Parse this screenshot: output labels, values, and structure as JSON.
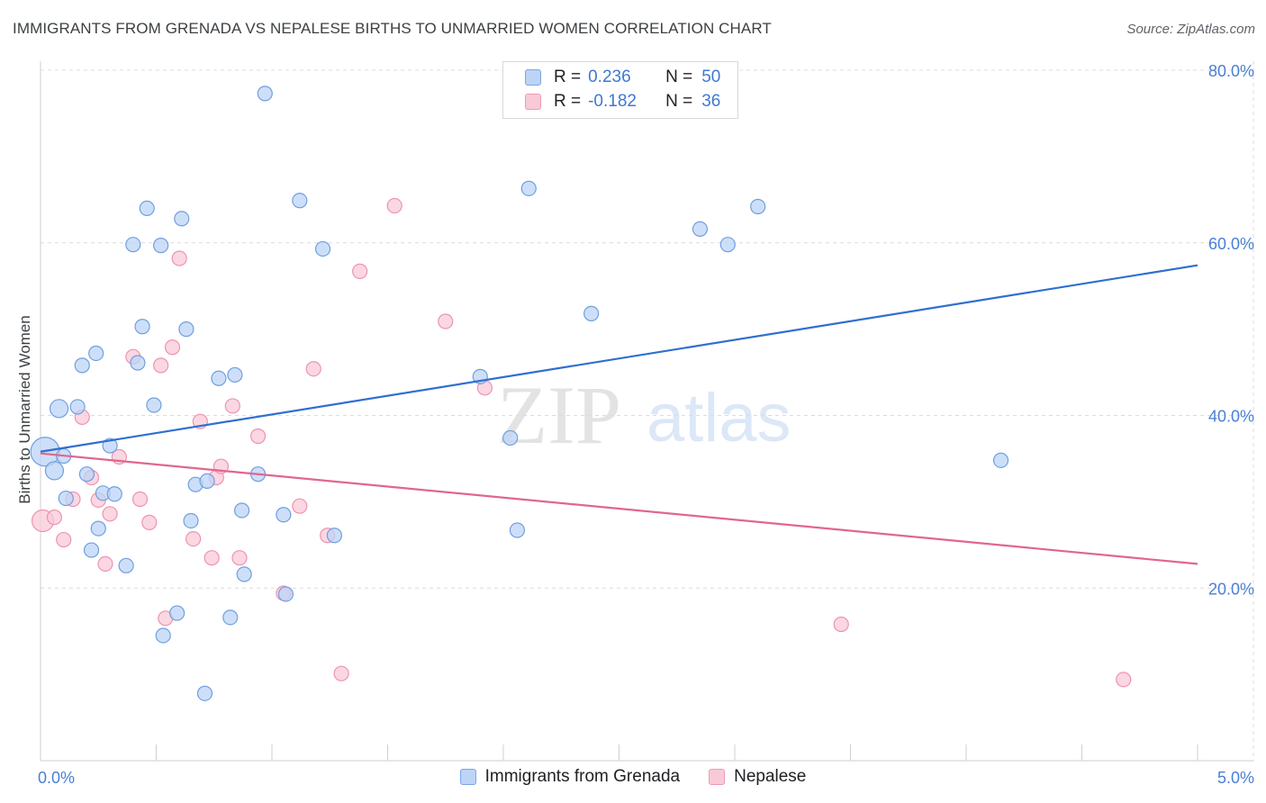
{
  "title": "IMMIGRANTS FROM GRENADA VS NEPALESE BIRTHS TO UNMARRIED WOMEN CORRELATION CHART",
  "source": "Source: ZipAtlas.com",
  "watermark": {
    "zip": "ZIP",
    "atlas": "atlas"
  },
  "legend": {
    "rows": [
      {
        "r_label": "R =",
        "r_value": "0.236",
        "n_label": "N =",
        "n_value": "50"
      },
      {
        "r_label": "R =",
        "r_value": "-0.182",
        "n_label": "N =",
        "n_value": "36"
      }
    ]
  },
  "colors": {
    "blue_fill": "#bcd4f6",
    "blue_stroke": "#6f9fe0",
    "blue_line": "#2f6fd0",
    "pink_fill": "#f9c9d8",
    "pink_stroke": "#ec94b2",
    "pink_line": "#e06690",
    "tick": "#4a7fd4",
    "grid": "#dcdcdc"
  },
  "chart_data": {
    "type": "scatter",
    "title": "IMMIGRANTS FROM GRENADA VS NEPALESE BIRTHS TO UNMARRIED WOMEN CORRELATION CHART",
    "xlabel": "",
    "ylabel": "Births to Unmarried Women",
    "xlim": [
      0,
      5
    ],
    "ylim": [
      0,
      80
    ],
    "x_ticks": [
      0,
      5
    ],
    "x_tick_labels": [
      "0.0%",
      "5.0%"
    ],
    "y_ticks": [
      20,
      40,
      60,
      80
    ],
    "y_tick_labels": [
      "20.0%",
      "40.0%",
      "60.0%",
      "80.0%"
    ],
    "grid": true,
    "legend_position": "bottom",
    "series": [
      {
        "name": "Immigrants from Grenada",
        "r": 0.236,
        "n": 50,
        "trend": [
          [
            0,
            35.8
          ],
          [
            5,
            57.4
          ]
        ],
        "points": [
          [
            0.02,
            35.8,
            16
          ],
          [
            0.06,
            33.6,
            10
          ],
          [
            0.08,
            40.8,
            10
          ],
          [
            0.1,
            35.3,
            8
          ],
          [
            0.11,
            30.4,
            8
          ],
          [
            0.16,
            41.0,
            8
          ],
          [
            0.18,
            45.8,
            8
          ],
          [
            0.2,
            33.2,
            8
          ],
          [
            0.22,
            24.4,
            8
          ],
          [
            0.24,
            47.2,
            8
          ],
          [
            0.25,
            26.9,
            8
          ],
          [
            0.27,
            31.0,
            8
          ],
          [
            0.3,
            36.5,
            8
          ],
          [
            0.32,
            30.9,
            8
          ],
          [
            0.37,
            22.6,
            8
          ],
          [
            0.4,
            59.8,
            8
          ],
          [
            0.42,
            46.1,
            8
          ],
          [
            0.44,
            50.3,
            8
          ],
          [
            0.46,
            64.0,
            8
          ],
          [
            0.49,
            41.2,
            8
          ],
          [
            0.52,
            59.7,
            8
          ],
          [
            0.53,
            14.5,
            8
          ],
          [
            0.59,
            17.1,
            8
          ],
          [
            0.61,
            62.8,
            8
          ],
          [
            0.63,
            50.0,
            8
          ],
          [
            0.65,
            27.8,
            8
          ],
          [
            0.67,
            32.0,
            8
          ],
          [
            0.71,
            7.8,
            8
          ],
          [
            0.72,
            32.4,
            8
          ],
          [
            0.77,
            44.3,
            8
          ],
          [
            0.82,
            16.6,
            8
          ],
          [
            0.84,
            44.7,
            8
          ],
          [
            0.87,
            29.0,
            8
          ],
          [
            0.88,
            21.6,
            8
          ],
          [
            0.94,
            33.2,
            8
          ],
          [
            0.97,
            77.3,
            8
          ],
          [
            1.05,
            28.5,
            8
          ],
          [
            1.06,
            19.3,
            8
          ],
          [
            1.12,
            64.9,
            8
          ],
          [
            1.22,
            59.3,
            8
          ],
          [
            1.27,
            26.1,
            8
          ],
          [
            1.9,
            44.5,
            8
          ],
          [
            2.03,
            37.4,
            8
          ],
          [
            2.06,
            26.7,
            8
          ],
          [
            2.11,
            66.3,
            8
          ],
          [
            2.38,
            51.8,
            8
          ],
          [
            2.85,
            61.6,
            8
          ],
          [
            2.97,
            59.8,
            8
          ],
          [
            3.1,
            64.2,
            8
          ],
          [
            4.15,
            34.8,
            8
          ]
        ]
      },
      {
        "name": "Nepalese",
        "r": -0.182,
        "n": 36,
        "trend": [
          [
            0,
            35.6
          ],
          [
            5,
            22.8
          ]
        ],
        "points": [
          [
            0.01,
            27.8,
            12
          ],
          [
            0.06,
            28.2,
            8
          ],
          [
            0.1,
            25.6,
            8
          ],
          [
            0.14,
            30.3,
            8
          ],
          [
            0.18,
            39.8,
            8
          ],
          [
            0.22,
            32.8,
            8
          ],
          [
            0.25,
            30.2,
            8
          ],
          [
            0.28,
            22.8,
            8
          ],
          [
            0.3,
            28.6,
            8
          ],
          [
            0.34,
            35.2,
            8
          ],
          [
            0.4,
            46.8,
            8
          ],
          [
            0.43,
            30.3,
            8
          ],
          [
            0.47,
            27.6,
            8
          ],
          [
            0.52,
            45.8,
            8
          ],
          [
            0.54,
            16.5,
            8
          ],
          [
            0.57,
            47.9,
            8
          ],
          [
            0.6,
            58.2,
            8
          ],
          [
            0.66,
            25.7,
            8
          ],
          [
            0.69,
            39.3,
            8
          ],
          [
            0.74,
            23.5,
            8
          ],
          [
            0.76,
            32.8,
            8
          ],
          [
            0.78,
            34.1,
            8
          ],
          [
            0.83,
            41.1,
            8
          ],
          [
            0.86,
            23.5,
            8
          ],
          [
            0.94,
            37.6,
            8
          ],
          [
            1.05,
            19.4,
            8
          ],
          [
            1.12,
            29.5,
            8
          ],
          [
            1.18,
            45.4,
            8
          ],
          [
            1.24,
            26.1,
            8
          ],
          [
            1.3,
            10.1,
            8
          ],
          [
            1.38,
            56.7,
            8
          ],
          [
            1.53,
            64.3,
            8
          ],
          [
            1.75,
            50.9,
            8
          ],
          [
            1.92,
            43.2,
            8
          ],
          [
            3.46,
            15.8,
            8
          ],
          [
            4.68,
            9.4,
            8
          ]
        ]
      }
    ]
  }
}
